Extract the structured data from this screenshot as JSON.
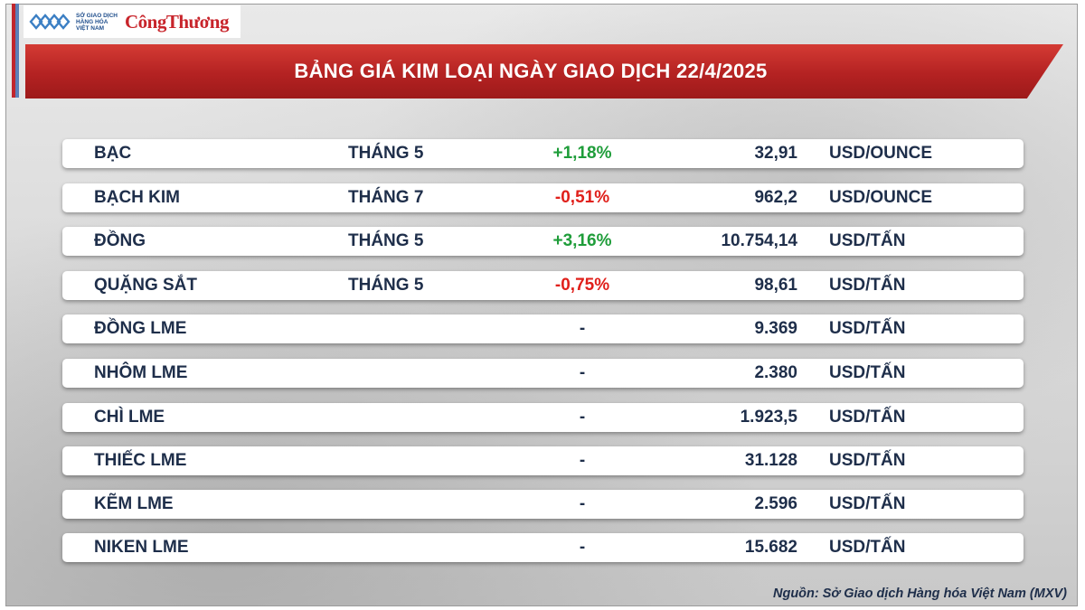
{
  "header": {
    "logo_small": "SỞ GIAO DỊCH HÀNG HÓA VIỆT NAM",
    "logo_brand": "CôngThương",
    "title": "BẢNG GIÁ KIM LOẠI NGÀY GIAO DỊCH 22/4/2025"
  },
  "colors": {
    "banner": "#b42222",
    "positive": "#1f9d3a",
    "negative": "#e0201b",
    "text": "#1e2e4a"
  },
  "rows": [
    {
      "name": "BẠC",
      "month": "THÁNG 5",
      "change": "+1,18%",
      "trend": "pos",
      "price": "32,91",
      "unit": "USD/OUNCE"
    },
    {
      "name": "BẠCH KIM",
      "month": "THÁNG 7",
      "change": "-0,51%",
      "trend": "neg",
      "price": "962,2",
      "unit": "USD/OUNCE"
    },
    {
      "name": "ĐỒNG",
      "month": "THÁNG 5",
      "change": "+3,16%",
      "trend": "pos",
      "price": "10.754,14",
      "unit": "USD/TẤN"
    },
    {
      "name": "QUẶNG SẮT",
      "month": "THÁNG 5",
      "change": "-0,75%",
      "trend": "neg",
      "price": "98,61",
      "unit": "USD/TẤN"
    },
    {
      "name": "ĐỒNG LME",
      "month": "",
      "change": "-",
      "trend": "flat",
      "price": "9.369",
      "unit": "USD/TẤN"
    },
    {
      "name": "NHÔM LME",
      "month": "",
      "change": "-",
      "trend": "flat",
      "price": "2.380",
      "unit": "USD/TẤN"
    },
    {
      "name": "CHÌ LME",
      "month": "",
      "change": "-",
      "trend": "flat",
      "price": "1.923,5",
      "unit": "USD/TẤN"
    },
    {
      "name": "THIẾC LME",
      "month": "",
      "change": "-",
      "trend": "flat",
      "price": "31.128",
      "unit": "USD/TẤN"
    },
    {
      "name": "KẼM LME",
      "month": "",
      "change": "-",
      "trend": "flat",
      "price": "2.596",
      "unit": "USD/TẤN"
    },
    {
      "name": "NIKEN LME",
      "month": "",
      "change": "-",
      "trend": "flat",
      "price": "15.682",
      "unit": "USD/TẤN"
    }
  ],
  "footer": {
    "source": "Nguồn: Sở Giao dịch Hàng hóa Việt Nam (MXV)"
  }
}
